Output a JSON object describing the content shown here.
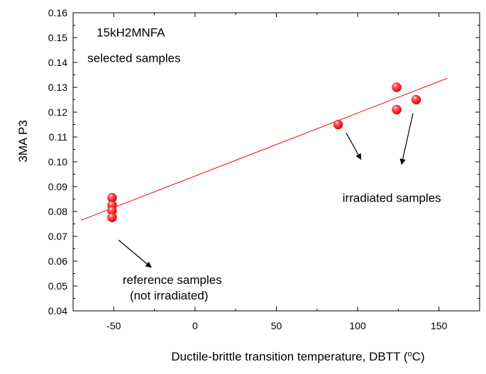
{
  "chart_data": {
    "type": "scatter",
    "title": "",
    "xlabel": "Ductile-brittle transition temperature, DBTT (",
    "xlabel_sup": "o",
    "xlabel_tail": "C)",
    "ylabel": "3MA  P3",
    "xlim": [
      -75,
      175
    ],
    "ylim": [
      0.04,
      0.16
    ],
    "x_ticks": [
      -50,
      0,
      50,
      100,
      150
    ],
    "x_tick_labels": [
      "-50",
      "0",
      "50",
      "100",
      "150"
    ],
    "y_ticks": [
      0.04,
      0.05,
      0.06,
      0.07,
      0.08,
      0.09,
      0.1,
      0.11,
      0.12,
      0.13,
      0.14,
      0.15,
      0.16
    ],
    "y_tick_labels": [
      "0.04",
      "0.05",
      "0.06",
      "0.07",
      "0.08",
      "0.09",
      "0.10",
      "0.11",
      "0.12",
      "0.13",
      "0.14",
      "0.15",
      "0.16"
    ],
    "grid": false,
    "point_color": "#ee0000",
    "line_color": "#ff0000",
    "series": [
      {
        "name": "samples",
        "points": [
          {
            "x": -51,
            "y": 0.0855
          },
          {
            "x": -51,
            "y": 0.0825
          },
          {
            "x": -51,
            "y": 0.0803
          },
          {
            "x": -51,
            "y": 0.0776
          },
          {
            "x": 88,
            "y": 0.115
          },
          {
            "x": 124,
            "y": 0.13
          },
          {
            "x": 124,
            "y": 0.121
          },
          {
            "x": 136,
            "y": 0.125
          }
        ]
      }
    ],
    "fit_line": {
      "x": [
        -70,
        155
      ],
      "y": [
        0.0765,
        0.1336
      ]
    },
    "annotations": [
      {
        "text": "15kH2MNFA",
        "data_x": -39.5,
        "data_y": 0.1504
      },
      {
        "text": "selected samples",
        "data_x": -37.5,
        "data_y": 0.1401
      },
      {
        "text": "irradiated samples",
        "data_x": 121,
        "data_y": 0.0838
      },
      {
        "text": "reference samples",
        "data_x": -14,
        "data_y": 0.0509
      },
      {
        "text": "(not irradiated)",
        "data_x": -16,
        "data_y": 0.0446
      }
    ],
    "arrows": [
      {
        "from": [
          -47,
          0.0685
        ],
        "to": [
          -27,
          0.0575
        ]
      },
      {
        "from": [
          93,
          0.1116
        ],
        "to": [
          102,
          0.101
        ]
      },
      {
        "from": [
          134,
          0.1195
        ],
        "to": [
          127,
          0.099
        ]
      }
    ]
  }
}
